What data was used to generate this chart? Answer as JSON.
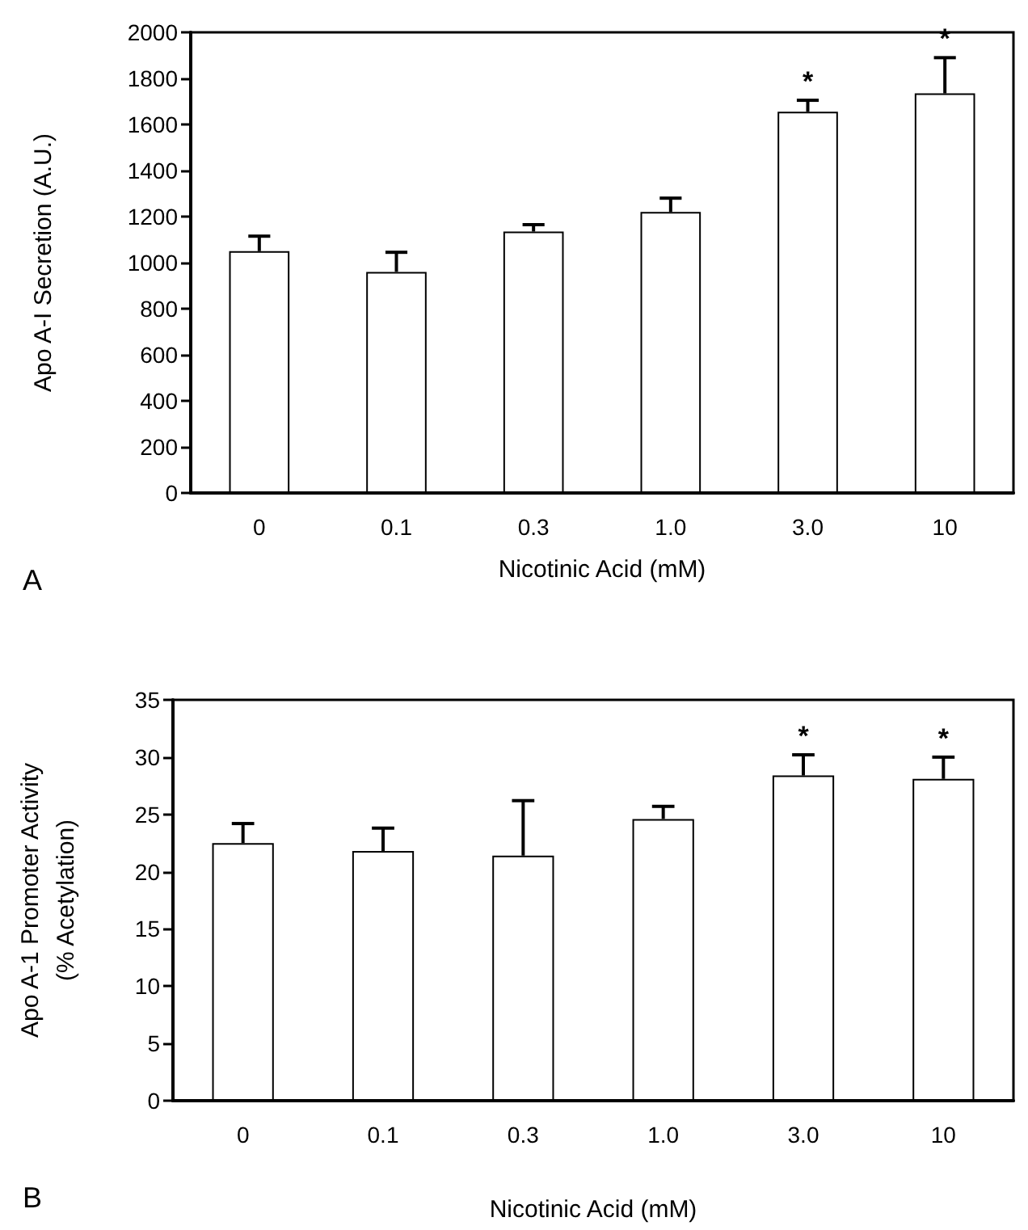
{
  "chart_data": [
    {
      "type": "bar",
      "categories": [
        "0",
        "0.1",
        "0.3",
        "1.0",
        "3.0",
        "10"
      ],
      "xlabel": "Nicotinic Acid (mM)",
      "ylabel": "Apo A-I Secretion (A.U.)",
      "values": [
        1050,
        960,
        1135,
        1220,
        1655,
        1735
      ],
      "errors": [
        65,
        85,
        30,
        60,
        50,
        155
      ],
      "color": "#ffffff",
      "ylim": [
        0,
        2000
      ],
      "yticks": [
        0,
        200,
        400,
        600,
        800,
        1000,
        1200,
        1400,
        1600,
        1800,
        2000
      ],
      "grid": false,
      "annotations": [
        "A",
        {
          "text": "*",
          "x": "3.0",
          "y": 1655
        },
        {
          "text": "*",
          "x": "10",
          "y": 1735
        }
      ]
    },
    {
      "type": "bar",
      "categories": [
        "0",
        "0.1",
        "0.3",
        "1.0",
        "3.0",
        "10"
      ],
      "xlabel": "Nicotinic Acid (mM)",
      "ylabel": "Apo A-1 Promoter Activity\n(% Acetylation)",
      "values": [
        22.5,
        21.8,
        21.4,
        24.6,
        28.4,
        28.1
      ],
      "errors": [
        1.7,
        2.0,
        4.8,
        1.1,
        1.8,
        1.9
      ],
      "color": "#ffffff",
      "ylim": [
        0,
        35
      ],
      "yticks": [
        0,
        5,
        10,
        15,
        20,
        25,
        30,
        35
      ],
      "grid": false,
      "annotations": [
        "B",
        {
          "text": "*",
          "x": "3.0",
          "y": 28.4
        },
        {
          "text": "*",
          "x": "10",
          "y": 28.1
        }
      ]
    }
  ]
}
